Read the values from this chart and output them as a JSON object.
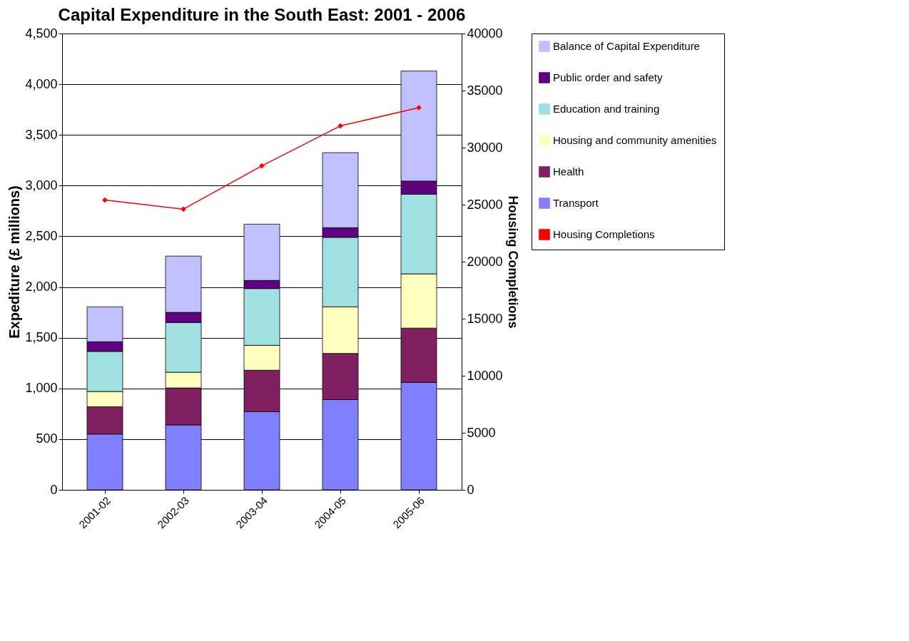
{
  "chart_data": {
    "type": "bar",
    "title": "Capital Expenditure in the South East: 2001 - 2006",
    "ylabel": "Expediture (£ millions)",
    "y2label": "Housing Completions",
    "categories": [
      "2001-02",
      "2002-03",
      "2003-04",
      "2004-05",
      "2005-06"
    ],
    "stacked": true,
    "series": [
      {
        "name": "Transport",
        "color": "#8080ff",
        "values": [
          550,
          640,
          770,
          890,
          1060
        ]
      },
      {
        "name": "Health",
        "color": "#802060",
        "values": [
          270,
          365,
          410,
          455,
          535
        ]
      },
      {
        "name": "Housing and community amenities",
        "color": "#ffffc0",
        "values": [
          150,
          155,
          245,
          460,
          535
        ]
      },
      {
        "name": "Education and training",
        "color": "#a0e0e0",
        "values": [
          395,
          490,
          560,
          685,
          785
        ]
      },
      {
        "name": "Public order and safety",
        "color": "#600080",
        "values": [
          95,
          100,
          80,
          95,
          130
        ]
      },
      {
        "name": "Balance of Capital Expenditure",
        "color": "#c0c0ff",
        "values": [
          345,
          555,
          555,
          740,
          1085
        ]
      },
      {
        "name": "Housing Completions",
        "type": "line",
        "axis": "y2",
        "color": "#ff0000",
        "marker": "diamond",
        "values": [
          25400,
          24600,
          28400,
          31900,
          33500
        ]
      }
    ],
    "ylim": [
      0,
      4500
    ],
    "yticks": [
      0,
      500,
      {
        "value": 1000,
        "label": "1,000"
      },
      {
        "value": 1500,
        "label": "1,500"
      },
      {
        "value": 2000,
        "label": "2,000"
      },
      {
        "value": 2500,
        "label": "2,500"
      },
      {
        "value": 3000,
        "label": "3,000"
      },
      {
        "value": 3500,
        "label": "3,500"
      },
      {
        "value": 4000,
        "label": "4,000"
      },
      {
        "value": 4500,
        "label": "4,500"
      }
    ],
    "y2lim": [
      0,
      40000
    ],
    "y2ticks": [
      0,
      5000,
      10000,
      15000,
      20000,
      25000,
      30000,
      35000,
      40000
    ],
    "grid": "y",
    "legend": "right"
  }
}
